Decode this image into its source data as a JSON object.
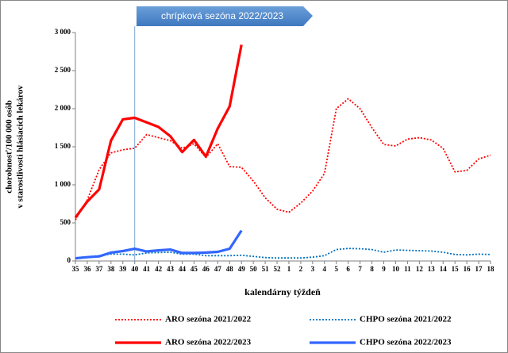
{
  "chart_data": {
    "type": "line",
    "categories": [
      35,
      36,
      37,
      38,
      39,
      40,
      41,
      42,
      43,
      44,
      45,
      46,
      47,
      48,
      49,
      50,
      51,
      52,
      1,
      2,
      3,
      4,
      5,
      6,
      7,
      8,
      9,
      10,
      11,
      12,
      13,
      14,
      15,
      16,
      17,
      18
    ],
    "ylim": [
      0,
      3000
    ],
    "yticks": [
      0,
      500,
      {
        "value": 1000,
        "label": "1 000"
      },
      {
        "value": 1500,
        "label": "1 500"
      },
      {
        "value": 2000,
        "label": "2 000"
      },
      {
        "value": 2500,
        "label": "2 500"
      },
      {
        "value": 3000,
        "label": "3 000"
      }
    ],
    "y_label": [
      "chorobnosť/100 000 osôb",
      "v starostlivosti hlásiacich lekárov"
    ],
    "x_label": "kalendárny týždeň",
    "grid": false,
    "annotation": {
      "text": "chrípková sezóna 2022/2023",
      "x": 40
    },
    "series": [
      {
        "name": "ARO sezóna 2021/2022",
        "color": "#ff0000",
        "style": "dotted",
        "values": [
          540,
          800,
          1200,
          1420,
          1460,
          1480,
          1660,
          1620,
          1580,
          1480,
          1540,
          1360,
          1540,
          1240,
          1230,
          1050,
          830,
          680,
          640,
          760,
          920,
          1150,
          2000,
          2130,
          2000,
          1750,
          1530,
          1510,
          1600,
          1620,
          1590,
          1480,
          1170,
          1190,
          1340,
          1390
        ]
      },
      {
        "name": "CHPO sezóna 2021/2022",
        "color": "#0070c0",
        "style": "dotted",
        "values": [
          40,
          55,
          70,
          90,
          90,
          80,
          105,
          110,
          115,
          90,
          90,
          70,
          70,
          70,
          75,
          60,
          45,
          40,
          40,
          40,
          50,
          70,
          150,
          165,
          160,
          150,
          115,
          145,
          140,
          135,
          130,
          115,
          85,
          80,
          90,
          85
        ]
      },
      {
        "name": "ARO sezóna 2022/2023",
        "color": "#ff0000",
        "style": "solid",
        "values": [
          570,
          780,
          940,
          1580,
          1860,
          1880,
          1820,
          1760,
          1640,
          1430,
          1590,
          1370,
          1740,
          2030,
          2840,
          null,
          null,
          null,
          null,
          null,
          null,
          null,
          null,
          null,
          null,
          null,
          null,
          null,
          null,
          null,
          null,
          null,
          null,
          null,
          null,
          null
        ]
      },
      {
        "name": "CHPO sezóna 2022/2023",
        "color": "#3366ff",
        "style": "solid",
        "values": [
          35,
          50,
          60,
          110,
          130,
          160,
          125,
          140,
          150,
          105,
          105,
          110,
          120,
          160,
          400,
          null,
          null,
          null,
          null,
          null,
          null,
          null,
          null,
          null,
          null,
          null,
          null,
          null,
          null,
          null,
          null,
          null,
          null,
          null,
          null,
          null
        ]
      }
    ]
  }
}
